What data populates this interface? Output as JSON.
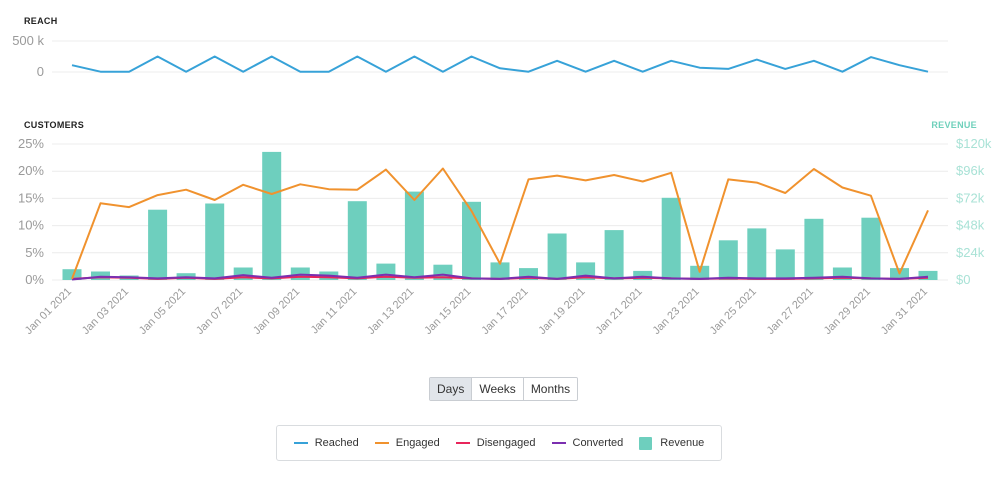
{
  "colors": {
    "reached": "#37a2d8",
    "engaged": "#f0922e",
    "disengaged": "#e8255b",
    "converted": "#7b2fb0",
    "revenue": "#6ecfbe",
    "grid": "#ececec",
    "axis_right": "#a9e2d6"
  },
  "range_buttons": {
    "days": "Days",
    "weeks": "Weeks",
    "months": "Months",
    "selected": "Days"
  },
  "legend": {
    "reached": "Reached",
    "engaged": "Engaged",
    "disengaged": "Disengaged",
    "converted": "Converted",
    "revenue": "Revenue"
  },
  "chart_data": [
    {
      "type": "line",
      "title": "REACH",
      "x": [
        "Jan 01 2021",
        "Jan 02 2021",
        "Jan 03 2021",
        "Jan 04 2021",
        "Jan 05 2021",
        "Jan 06 2021",
        "Jan 07 2021",
        "Jan 08 2021",
        "Jan 09 2021",
        "Jan 10 2021",
        "Jan 11 2021",
        "Jan 12 2021",
        "Jan 13 2021",
        "Jan 14 2021",
        "Jan 15 2021",
        "Jan 16 2021",
        "Jan 17 2021",
        "Jan 18 2021",
        "Jan 19 2021",
        "Jan 20 2021",
        "Jan 21 2021",
        "Jan 22 2021",
        "Jan 23 2021",
        "Jan 24 2021",
        "Jan 25 2021",
        "Jan 26 2021",
        "Jan 27 2021",
        "Jan 28 2021",
        "Jan 29 2021",
        "Jan 30 2021",
        "Jan 31 2021"
      ],
      "series": [
        {
          "name": "Reached",
          "values": [
            110000,
            5000,
            5000,
            250000,
            5000,
            250000,
            5000,
            250000,
            5000,
            5000,
            250000,
            5000,
            250000,
            5000,
            250000,
            60000,
            5000,
            180000,
            5000,
            180000,
            5000,
            180000,
            70000,
            50000,
            200000,
            50000,
            180000,
            5000,
            240000,
            110000,
            5000
          ]
        }
      ],
      "yticks": [
        "0",
        "500 k"
      ],
      "ylim": [
        0,
        500000
      ],
      "grid": true
    },
    {
      "type": "bar",
      "title": "CUSTOMERS",
      "y2label": "REVENUE",
      "x": [
        "Jan 01 2021",
        "Jan 02 2021",
        "Jan 03 2021",
        "Jan 04 2021",
        "Jan 05 2021",
        "Jan 06 2021",
        "Jan 07 2021",
        "Jan 08 2021",
        "Jan 09 2021",
        "Jan 10 2021",
        "Jan 11 2021",
        "Jan 12 2021",
        "Jan 13 2021",
        "Jan 14 2021",
        "Jan 15 2021",
        "Jan 16 2021",
        "Jan 17 2021",
        "Jan 18 2021",
        "Jan 19 2021",
        "Jan 20 2021",
        "Jan 21 2021",
        "Jan 22 2021",
        "Jan 23 2021",
        "Jan 24 2021",
        "Jan 25 2021",
        "Jan 26 2021",
        "Jan 27 2021",
        "Jan 28 2021",
        "Jan 29 2021",
        "Jan 30 2021",
        "Jan 31 2021"
      ],
      "xticks": [
        "Jan 01 2021",
        "Jan 03 2021",
        "Jan 05 2021",
        "Jan 07 2021",
        "Jan 09 2021",
        "Jan 11 2021",
        "Jan 13 2021",
        "Jan 15 2021",
        "Jan 17 2021",
        "Jan 19 2021",
        "Jan 21 2021",
        "Jan 23 2021",
        "Jan 25 2021",
        "Jan 27 2021",
        "Jan 29 2021",
        "Jan 31 2021"
      ],
      "series": [
        {
          "name": "Engaged",
          "axis": "left",
          "values": [
            0.2,
            14.1,
            13.4,
            15.6,
            16.6,
            14.7,
            17.5,
            15.8,
            17.6,
            16.7,
            16.6,
            20.3,
            14.7,
            20.5,
            12.7,
            3.0,
            18.5,
            19.2,
            18.3,
            19.3,
            18.1,
            19.7,
            1.5,
            18.5,
            17.9,
            16.0,
            20.4,
            17.0,
            15.5,
            1.2,
            12.8
          ]
        },
        {
          "name": "Disengaged",
          "axis": "left",
          "values": [
            0.2,
            0.5,
            0.4,
            0.2,
            0.4,
            0.2,
            0.5,
            0.3,
            0.6,
            0.5,
            0.3,
            0.6,
            0.4,
            0.5,
            0.3,
            0.2,
            0.4,
            0.2,
            0.5,
            0.3,
            0.4,
            0.3,
            0.2,
            0.3,
            0.2,
            0.2,
            0.3,
            0.4,
            0.3,
            0.2,
            0.4
          ]
        },
        {
          "name": "Converted",
          "axis": "left",
          "values": [
            0.1,
            0.6,
            0.5,
            0.3,
            0.5,
            0.3,
            0.9,
            0.4,
            1.0,
            0.8,
            0.4,
            1.0,
            0.5,
            1.0,
            0.3,
            0.2,
            0.6,
            0.2,
            0.8,
            0.3,
            0.6,
            0.3,
            0.2,
            0.4,
            0.3,
            0.3,
            0.4,
            0.6,
            0.3,
            0.2,
            0.6
          ]
        },
        {
          "name": "Revenue",
          "axis": "right",
          "type": "bar",
          "values": [
            9500,
            7500,
            4000,
            62000,
            6000,
            67500,
            11000,
            113000,
            11000,
            7500,
            69500,
            14500,
            78000,
            13500,
            69000,
            15500,
            10500,
            41000,
            15500,
            44000,
            8000,
            72500,
            12500,
            35000,
            45500,
            27000,
            54000,
            11000,
            55000,
            10500,
            8000
          ]
        }
      ],
      "yticks": [
        "0%",
        "5%",
        "10%",
        "15%",
        "20%",
        "25%"
      ],
      "ylim": [
        0,
        25
      ],
      "y2ticks": [
        "$0",
        "$24k",
        "$48k",
        "$72k",
        "$96k",
        "$120k"
      ],
      "y2lim": [
        0,
        120000
      ],
      "grid": true
    }
  ]
}
